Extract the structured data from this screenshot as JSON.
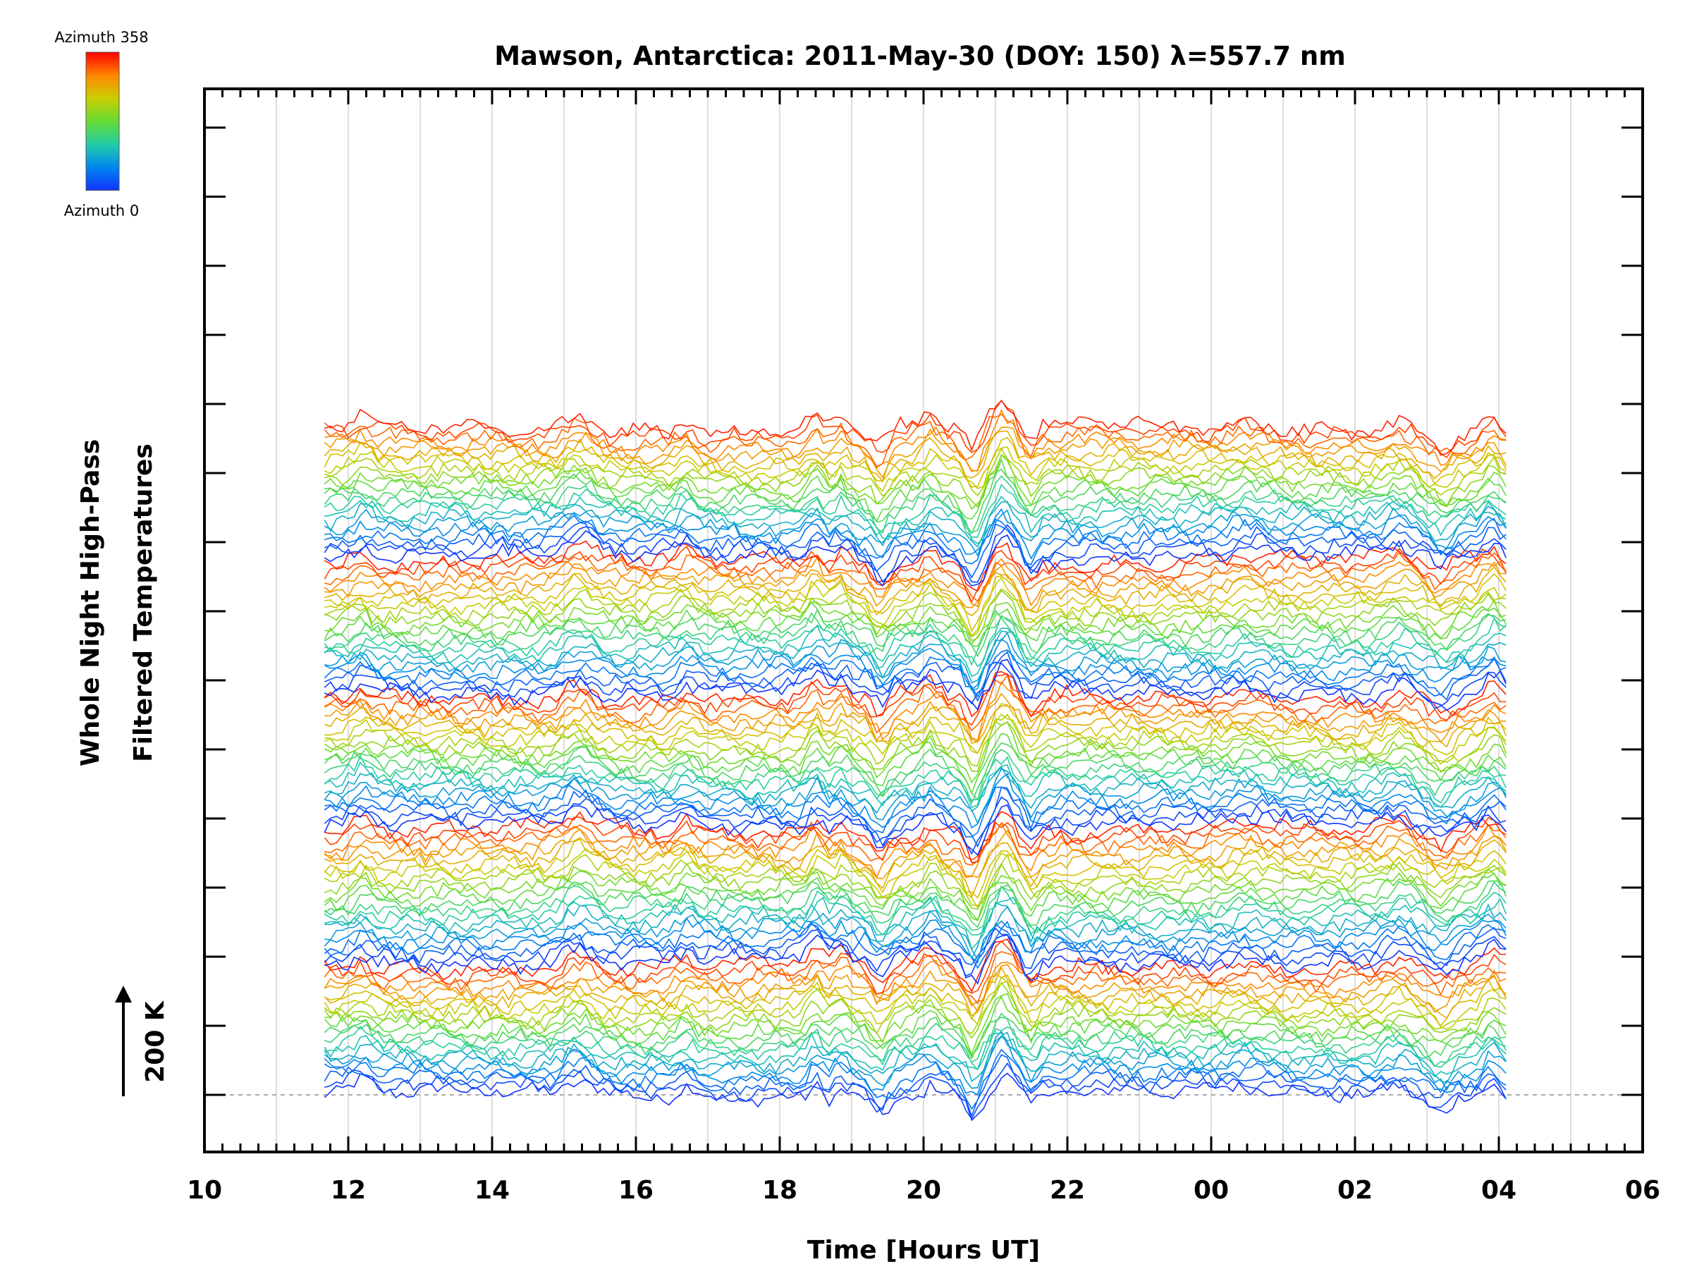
{
  "chart_data": {
    "type": "line",
    "title": "Mawson, Antarctica: 2011-May-30 (DOY: 150) λ=557.7 nm",
    "xlabel": "Time [Hours UT]",
    "ylabel_line1": "Whole Night High-Pass",
    "ylabel_line2": "Filtered Temperatures",
    "x_tick_labels": [
      "10",
      "12",
      "14",
      "16",
      "18",
      "20",
      "22",
      "00",
      "02",
      "04",
      "06"
    ],
    "xlim_hours": [
      10,
      30
    ],
    "data_x_range_hours": [
      11.67,
      28.1
    ],
    "scale_bar": {
      "label": "200 K",
      "arrow": "up"
    },
    "colorbar": {
      "top_label": "Azimuth 358",
      "bottom_label": "Azimuth 0",
      "colors": [
        "#ff0000",
        "#ff8800",
        "#cccc00",
        "#66dd33",
        "#22ccaa",
        "#0088ee",
        "#1133ff"
      ]
    },
    "series_count": 115,
    "azimuth_cycles": 5,
    "common_features_hours": [
      {
        "t": 12.2,
        "amp": 0.6,
        "w": 0.15
      },
      {
        "t": 15.2,
        "amp": 0.9,
        "w": 0.25
      },
      {
        "t": 16.7,
        "amp": 0.6,
        "w": 0.15
      },
      {
        "t": 18.5,
        "amp": 1.0,
        "w": 0.12
      },
      {
        "t": 18.85,
        "amp": 0.7,
        "w": 0.12
      },
      {
        "t": 19.4,
        "amp": -1.2,
        "w": 0.15
      },
      {
        "t": 20.1,
        "amp": 0.8,
        "w": 0.15
      },
      {
        "t": 20.7,
        "amp": -1.6,
        "w": 0.15
      },
      {
        "t": 21.1,
        "amp": 1.5,
        "w": 0.18
      },
      {
        "t": 21.5,
        "amp": -0.9,
        "w": 0.12
      },
      {
        "t": 24.5,
        "amp": 0.4,
        "w": 0.3
      },
      {
        "t": 26.6,
        "amp": 0.6,
        "w": 0.2
      },
      {
        "t": 27.2,
        "amp": -0.9,
        "w": 0.2
      },
      {
        "t": 27.9,
        "amp": 0.9,
        "w": 0.15
      }
    ]
  }
}
